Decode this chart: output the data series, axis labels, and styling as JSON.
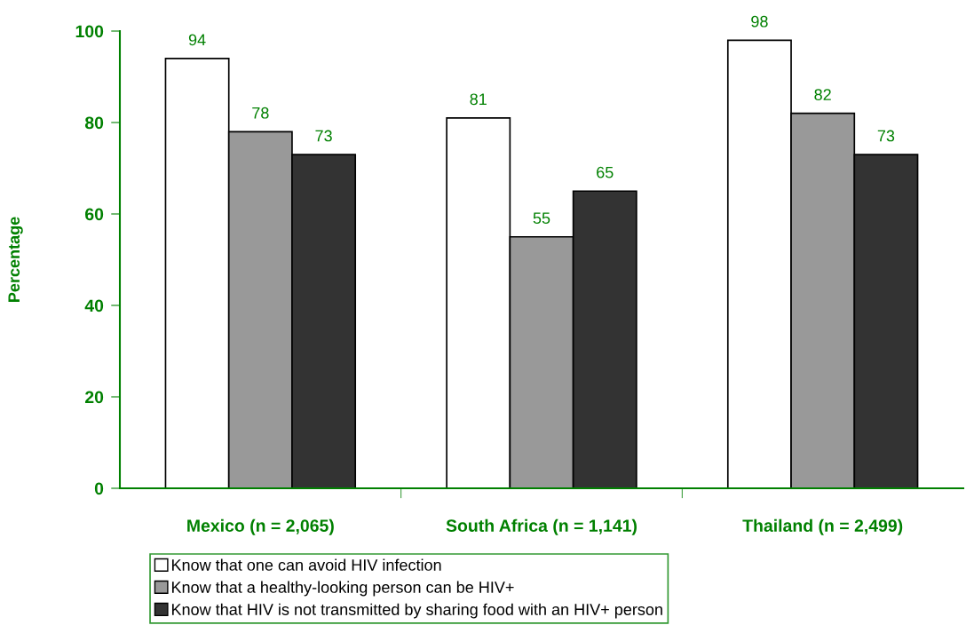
{
  "chart_data": {
    "type": "bar",
    "ylabel": "Percentage",
    "categories": [
      "Mexico (n = 2,065)",
      "South Africa (n = 1,141)",
      "Thailand (n = 2,499)"
    ],
    "series": [
      {
        "name": "Know that one can avoid HIV infection",
        "color": "#ffffff",
        "values": [
          94,
          81,
          98
        ]
      },
      {
        "name": "Know that a healthy-looking person can be HIV+",
        "color": "#999999",
        "values": [
          78,
          55,
          82
        ]
      },
      {
        "name": "Know that HIV is not transmitted by sharing food with an HIV+ person",
        "color": "#333333",
        "values": [
          73,
          65,
          73
        ]
      }
    ],
    "ylim": [
      0,
      100
    ],
    "yticks": [
      0,
      20,
      40,
      60,
      80,
      100
    ],
    "grid": false,
    "legend": "bottom",
    "data_labels": true
  }
}
